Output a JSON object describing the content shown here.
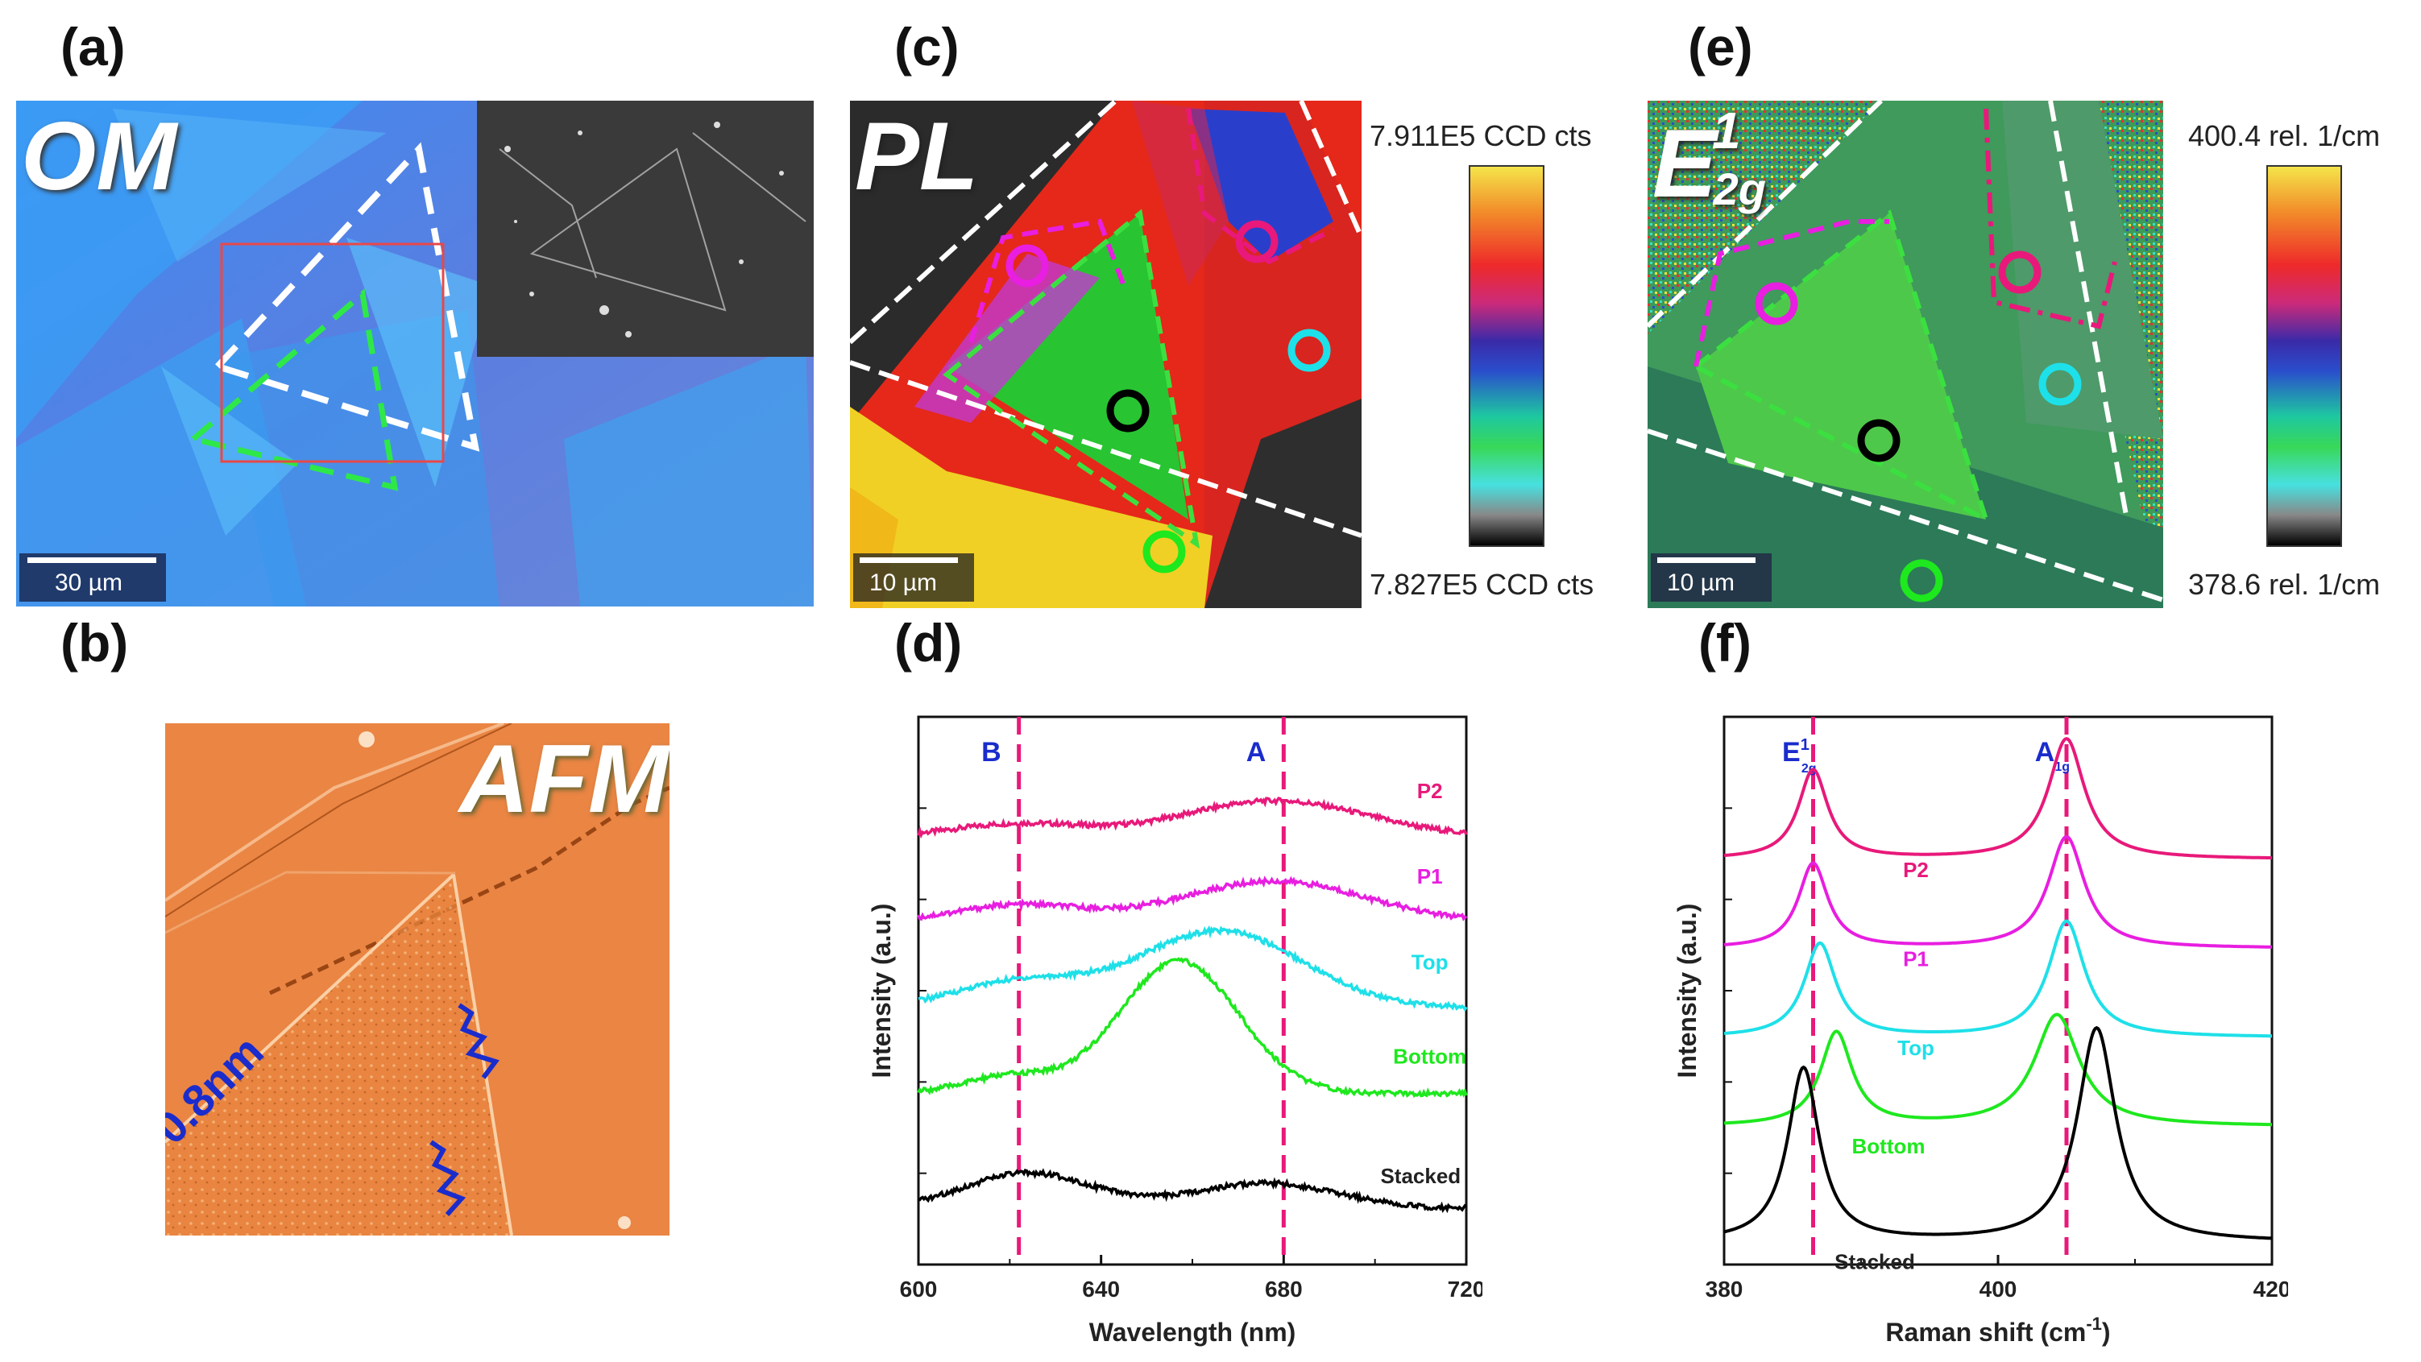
{
  "panel_labels": {
    "a": "(a)",
    "b": "(b)",
    "c": "(c)",
    "d": "(d)",
    "e": "(e)",
    "f": "(f)"
  },
  "panel_a": {
    "tag": "OM",
    "scale_bar": "30 µm"
  },
  "panel_b": {
    "tag": "AFM",
    "height_label": "0.8nm"
  },
  "panel_c": {
    "tag": "PL",
    "scale_bar": "10 µm",
    "colorbar_max": "7.911E5 CCD cts",
    "colorbar_min": "7.827E5 CCD cts"
  },
  "panel_e": {
    "tag_main": "E",
    "tag_sup": "1",
    "tag_sub": "2g",
    "scale_bar": "10 µm",
    "colorbar_max": "400.4 rel. 1/cm",
    "colorbar_min": "378.6 rel. 1/cm"
  },
  "colors": {
    "P2": "#e8197a",
    "P1": "#e81ee0",
    "Top": "#1ee0e8",
    "Bottom": "#1ee81e",
    "Stacked": "#000000",
    "dashed_marker": "#e8197a",
    "peak_label": "#1a2ccc"
  },
  "chart_data": [
    {
      "id": "d",
      "type": "line",
      "xlabel": "Wavelength (nm)",
      "ylabel": "Intensity (a.u.)",
      "xlim": [
        600,
        720
      ],
      "xticks": [
        600,
        640,
        680,
        720
      ],
      "markers": [
        {
          "x": 622,
          "label": "B"
        },
        {
          "x": 680,
          "label": "A"
        }
      ],
      "series": [
        {
          "name": "P2",
          "label": "P2",
          "offset": 4.0,
          "peaks": [
            [
              622,
              0.15,
              14
            ],
            [
              678,
              0.42,
              20
            ]
          ],
          "base": 0.0
        },
        {
          "name": "P1",
          "label": "P1",
          "offset": 3.0,
          "peaks": [
            [
              622,
              0.2,
              14
            ],
            [
              678,
              0.48,
              20
            ]
          ],
          "base": 0.0
        },
        {
          "name": "Top",
          "label": "Top",
          "offset": 2.0,
          "peaks": [
            [
              622,
              0.3,
              14
            ],
            [
              666,
              0.9,
              18
            ]
          ],
          "base": 0.0
        },
        {
          "name": "Bottom",
          "label": "Bottom",
          "offset": 1.0,
          "peaks": [
            [
              620,
              0.2,
              10
            ],
            [
              657,
              1.55,
              13
            ]
          ],
          "base": 0.0
        },
        {
          "name": "Stacked",
          "label": "Stacked",
          "offset": -0.35,
          "peaks": [
            [
              624,
              0.42,
              14
            ],
            [
              676,
              0.3,
              16
            ]
          ],
          "base": 0.0
        }
      ]
    },
    {
      "id": "f",
      "type": "line",
      "xlabel": "Raman shift (cm",
      "xlabel_sup": "-1",
      "xlabel_tail": ")",
      "ylabel": "Intensity (a.u.)",
      "xlim": [
        380,
        420
      ],
      "xticks": [
        380,
        400,
        420
      ],
      "markers": [
        {
          "x": 386.5,
          "label": "E",
          "label_sup": "1",
          "label_sub": "2g"
        },
        {
          "x": 405.0,
          "label": "A",
          "label_sub": "1g"
        }
      ],
      "series": [
        {
          "name": "P2",
          "label": "P2",
          "offset": 3.0,
          "peaks": [
            [
              386.5,
              1.0,
              1.3
            ],
            [
              405.0,
              1.35,
              1.6
            ]
          ]
        },
        {
          "name": "P1",
          "label": "P1",
          "offset": 2.0,
          "peaks": [
            [
              386.5,
              0.95,
              1.3
            ],
            [
              405.0,
              1.25,
              1.6
            ]
          ]
        },
        {
          "name": "Top",
          "label": "Top",
          "offset": 1.0,
          "peaks": [
            [
              387.0,
              1.05,
              1.4
            ],
            [
              405.0,
              1.3,
              1.6
            ]
          ]
        },
        {
          "name": "Bottom",
          "label": "Bottom",
          "offset": 0.0,
          "peaks": [
            [
              388.2,
              1.05,
              1.4
            ],
            [
              404.3,
              1.25,
              2.0
            ]
          ]
        },
        {
          "name": "Stacked",
          "label": "Stacked",
          "offset": -1.3,
          "peaks": [
            [
              385.8,
              1.95,
              1.4
            ],
            [
              407.2,
              2.4,
              1.7
            ]
          ]
        }
      ]
    }
  ]
}
